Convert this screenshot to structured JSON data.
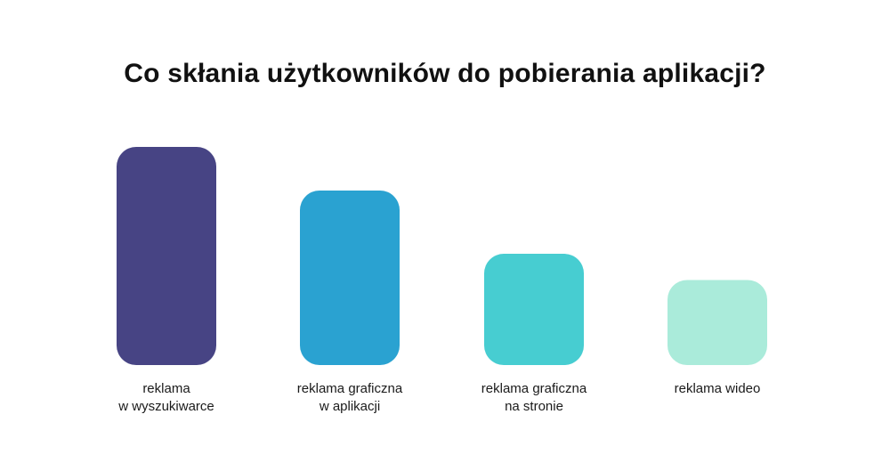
{
  "chart_data": {
    "type": "bar",
    "title": "Co skłania użytkowników do pobierania aplikacji?",
    "categories": [
      [
        "reklama",
        "w wyszukiwarce"
      ],
      [
        "reklama graficzna",
        "w aplikacji"
      ],
      [
        "reklama graficzna",
        "na stronie"
      ],
      [
        "reklama wideo"
      ]
    ],
    "values": [
      100,
      80,
      51,
      39
    ],
    "colors": [
      "#474484",
      "#2AA2D1",
      "#47CDD1",
      "#AAEBDA"
    ],
    "ylim": [
      0,
      100
    ],
    "show_axes": false,
    "grid": false,
    "legend": "none"
  }
}
